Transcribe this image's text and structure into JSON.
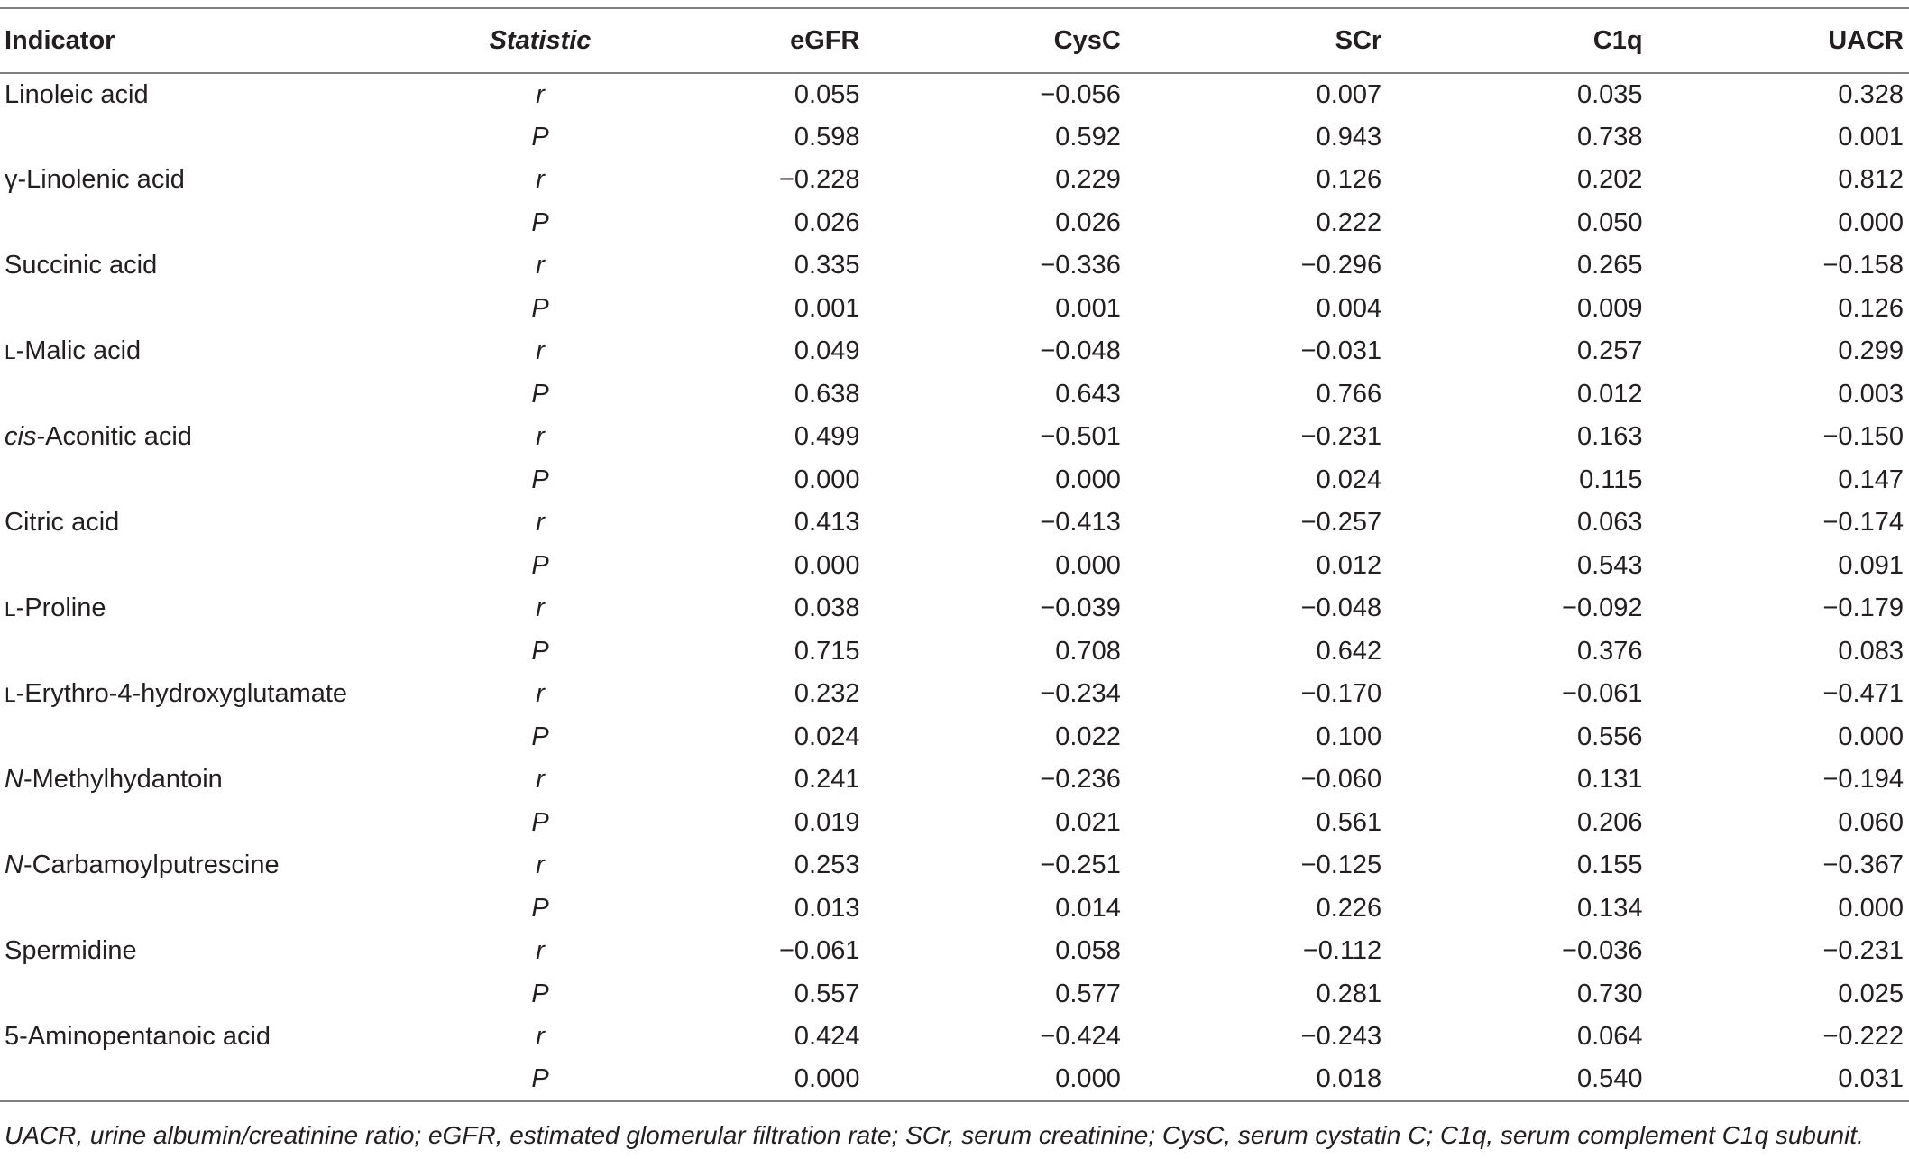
{
  "columns": {
    "indicator": "Indicator",
    "statistic": "Statistic",
    "egfr": "eGFR",
    "cysc": "CysC",
    "scr": "SCr",
    "c1q": "C1q",
    "uacr": "UACR"
  },
  "stat_labels": {
    "r": "r",
    "p": "P"
  },
  "rows": [
    {
      "prefix": "",
      "prefix_style": "",
      "name": "Linoleic acid",
      "r": [
        "0.055",
        "−0.056",
        "0.007",
        "0.035",
        "0.328"
      ],
      "p": [
        "0.598",
        "0.592",
        "0.943",
        "0.738",
        "0.001"
      ]
    },
    {
      "prefix": "",
      "prefix_style": "",
      "name": "γ-Linolenic acid",
      "r": [
        "−0.228",
        "0.229",
        "0.126",
        "0.202",
        "0.812"
      ],
      "p": [
        "0.026",
        "0.026",
        "0.222",
        "0.050",
        "0.000"
      ]
    },
    {
      "prefix": "",
      "prefix_style": "",
      "name": "Succinic acid",
      "r": [
        "0.335",
        "−0.336",
        "−0.296",
        "0.265",
        "−0.158"
      ],
      "p": [
        "0.001",
        "0.001",
        "0.004",
        "0.009",
        "0.126"
      ]
    },
    {
      "prefix": "L",
      "prefix_style": "smallcaps",
      "name": "-Malic acid",
      "r": [
        "0.049",
        "−0.048",
        "−0.031",
        "0.257",
        "0.299"
      ],
      "p": [
        "0.638",
        "0.643",
        "0.766",
        "0.012",
        "0.003"
      ]
    },
    {
      "prefix": "cis",
      "prefix_style": "italic",
      "name": "-Aconitic acid",
      "r": [
        "0.499",
        "−0.501",
        "−0.231",
        "0.163",
        "−0.150"
      ],
      "p": [
        "0.000",
        "0.000",
        "0.024",
        "0.115",
        "0.147"
      ]
    },
    {
      "prefix": "",
      "prefix_style": "",
      "name": "Citric acid",
      "r": [
        "0.413",
        "−0.413",
        "−0.257",
        "0.063",
        "−0.174"
      ],
      "p": [
        "0.000",
        "0.000",
        "0.012",
        "0.543",
        "0.091"
      ]
    },
    {
      "prefix": "L",
      "prefix_style": "smallcaps",
      "name": "-Proline",
      "r": [
        "0.038",
        "−0.039",
        "−0.048",
        "−0.092",
        "−0.179"
      ],
      "p": [
        "0.715",
        "0.708",
        "0.642",
        "0.376",
        "0.083"
      ]
    },
    {
      "prefix": "L",
      "prefix_style": "smallcaps",
      "name": "-Erythro-4-hydroxyglutamate",
      "r": [
        "0.232",
        "−0.234",
        "−0.170",
        "−0.061",
        "−0.471"
      ],
      "p": [
        "0.024",
        "0.022",
        "0.100",
        "0.556",
        "0.000"
      ]
    },
    {
      "prefix": "N",
      "prefix_style": "italic",
      "name": "-Methylhydantoin",
      "r": [
        "0.241",
        "−0.236",
        "−0.060",
        "0.131",
        "−0.194"
      ],
      "p": [
        "0.019",
        "0.021",
        "0.561",
        "0.206",
        "0.060"
      ]
    },
    {
      "prefix": "N",
      "prefix_style": "italic",
      "name": "-Carbamoylputrescine",
      "r": [
        "0.253",
        "−0.251",
        "−0.125",
        "0.155",
        "−0.367"
      ],
      "p": [
        "0.013",
        "0.014",
        "0.226",
        "0.134",
        "0.000"
      ]
    },
    {
      "prefix": "",
      "prefix_style": "",
      "name": "Spermidine",
      "r": [
        "−0.061",
        "0.058",
        "−0.112",
        "−0.036",
        "−0.231"
      ],
      "p": [
        "0.557",
        "0.577",
        "0.281",
        "0.730",
        "0.025"
      ]
    },
    {
      "prefix": "",
      "prefix_style": "",
      "name": "5-Aminopentanoic acid",
      "r": [
        "0.424",
        "−0.424",
        "−0.243",
        "0.064",
        "−0.222"
      ],
      "p": [
        "0.000",
        "0.000",
        "0.018",
        "0.540",
        "0.031"
      ]
    }
  ],
  "footnote": "UACR, urine albumin/creatinine ratio; eGFR, estimated glomerular filtration rate; SCr, serum creatinine; CysC, serum cystatin C; C1q, serum complement C1q subunit."
}
